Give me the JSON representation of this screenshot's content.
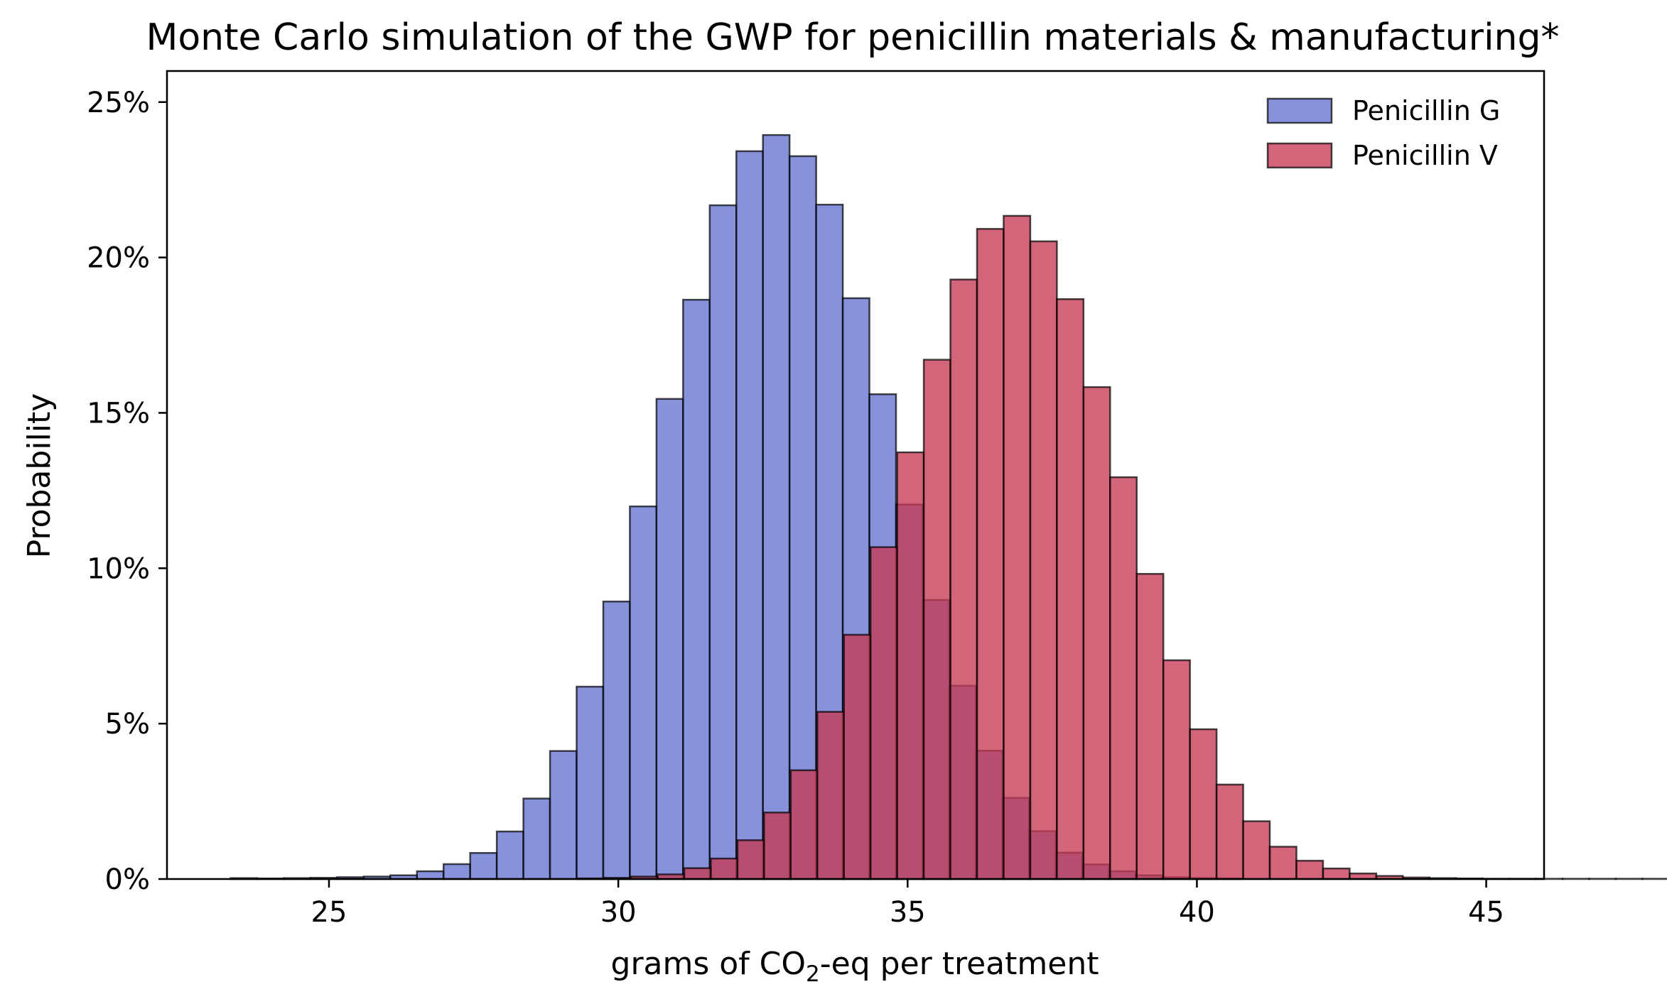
{
  "chart_data": {
    "type": "histogram",
    "title": "Monte Carlo simulation of the GWP for penicillin materials & manufacturing*",
    "xlabel": {
      "prefix": "grams of CO",
      "subscript": "2",
      "suffix": "-eq per treatment"
    },
    "ylabel": "Probability",
    "xlim": [
      22.2,
      46.0
    ],
    "ylim": [
      0,
      0.26
    ],
    "x_ticks": [
      25,
      30,
      35,
      40,
      45
    ],
    "x_tick_labels": [
      "25",
      "30",
      "35",
      "40",
      "45"
    ],
    "y_ticks": [
      0,
      0.05,
      0.1,
      0.15,
      0.2,
      0.25
    ],
    "y_tick_labels": [
      "0%",
      "5%",
      "10%",
      "15%",
      "20%",
      "25%"
    ],
    "grid": false,
    "legend_position": "top-right",
    "series": [
      {
        "name": "Penicillin G",
        "color": "#6a77d2",
        "opacity": 0.8,
        "bin_start": 23.3,
        "bin_width": 0.46,
        "values": [
          0.0003,
          0.0002,
          0.0003,
          0.0004,
          0.0006,
          0.0008,
          0.0012,
          0.0025,
          0.0048,
          0.0084,
          0.0153,
          0.0259,
          0.0412,
          0.0619,
          0.0893,
          0.1199,
          0.1545,
          0.1864,
          0.2168,
          0.2342,
          0.2394,
          0.2326,
          0.217,
          0.1869,
          0.156,
          0.1205,
          0.0898,
          0.0622,
          0.0413,
          0.0261,
          0.0154,
          0.0085,
          0.0047,
          0.0025,
          0.0012,
          0.0006,
          0.0003,
          0.0002
        ]
      },
      {
        "name": "Penicillin V",
        "color": "#c53a55",
        "opacity": 0.78,
        "bin_start": 29.3,
        "bin_width": 0.46,
        "values": [
          0.0002,
          0.0004,
          0.0008,
          0.0015,
          0.0035,
          0.0066,
          0.0125,
          0.0214,
          0.035,
          0.0538,
          0.0786,
          0.1068,
          0.1373,
          0.1671,
          0.1929,
          0.2092,
          0.2134,
          0.2052,
          0.1866,
          0.1583,
          0.1293,
          0.0982,
          0.0704,
          0.0482,
          0.0304,
          0.0186,
          0.0104,
          0.0059,
          0.0034,
          0.0018,
          0.001,
          0.0005,
          0.0003,
          0.0002,
          0.0001,
          0.0001,
          0.0001,
          0.0001,
          0.0001,
          0.0001,
          0.0001,
          0.0001,
          0.0001,
          0.0001,
          0.0001
        ]
      }
    ]
  }
}
